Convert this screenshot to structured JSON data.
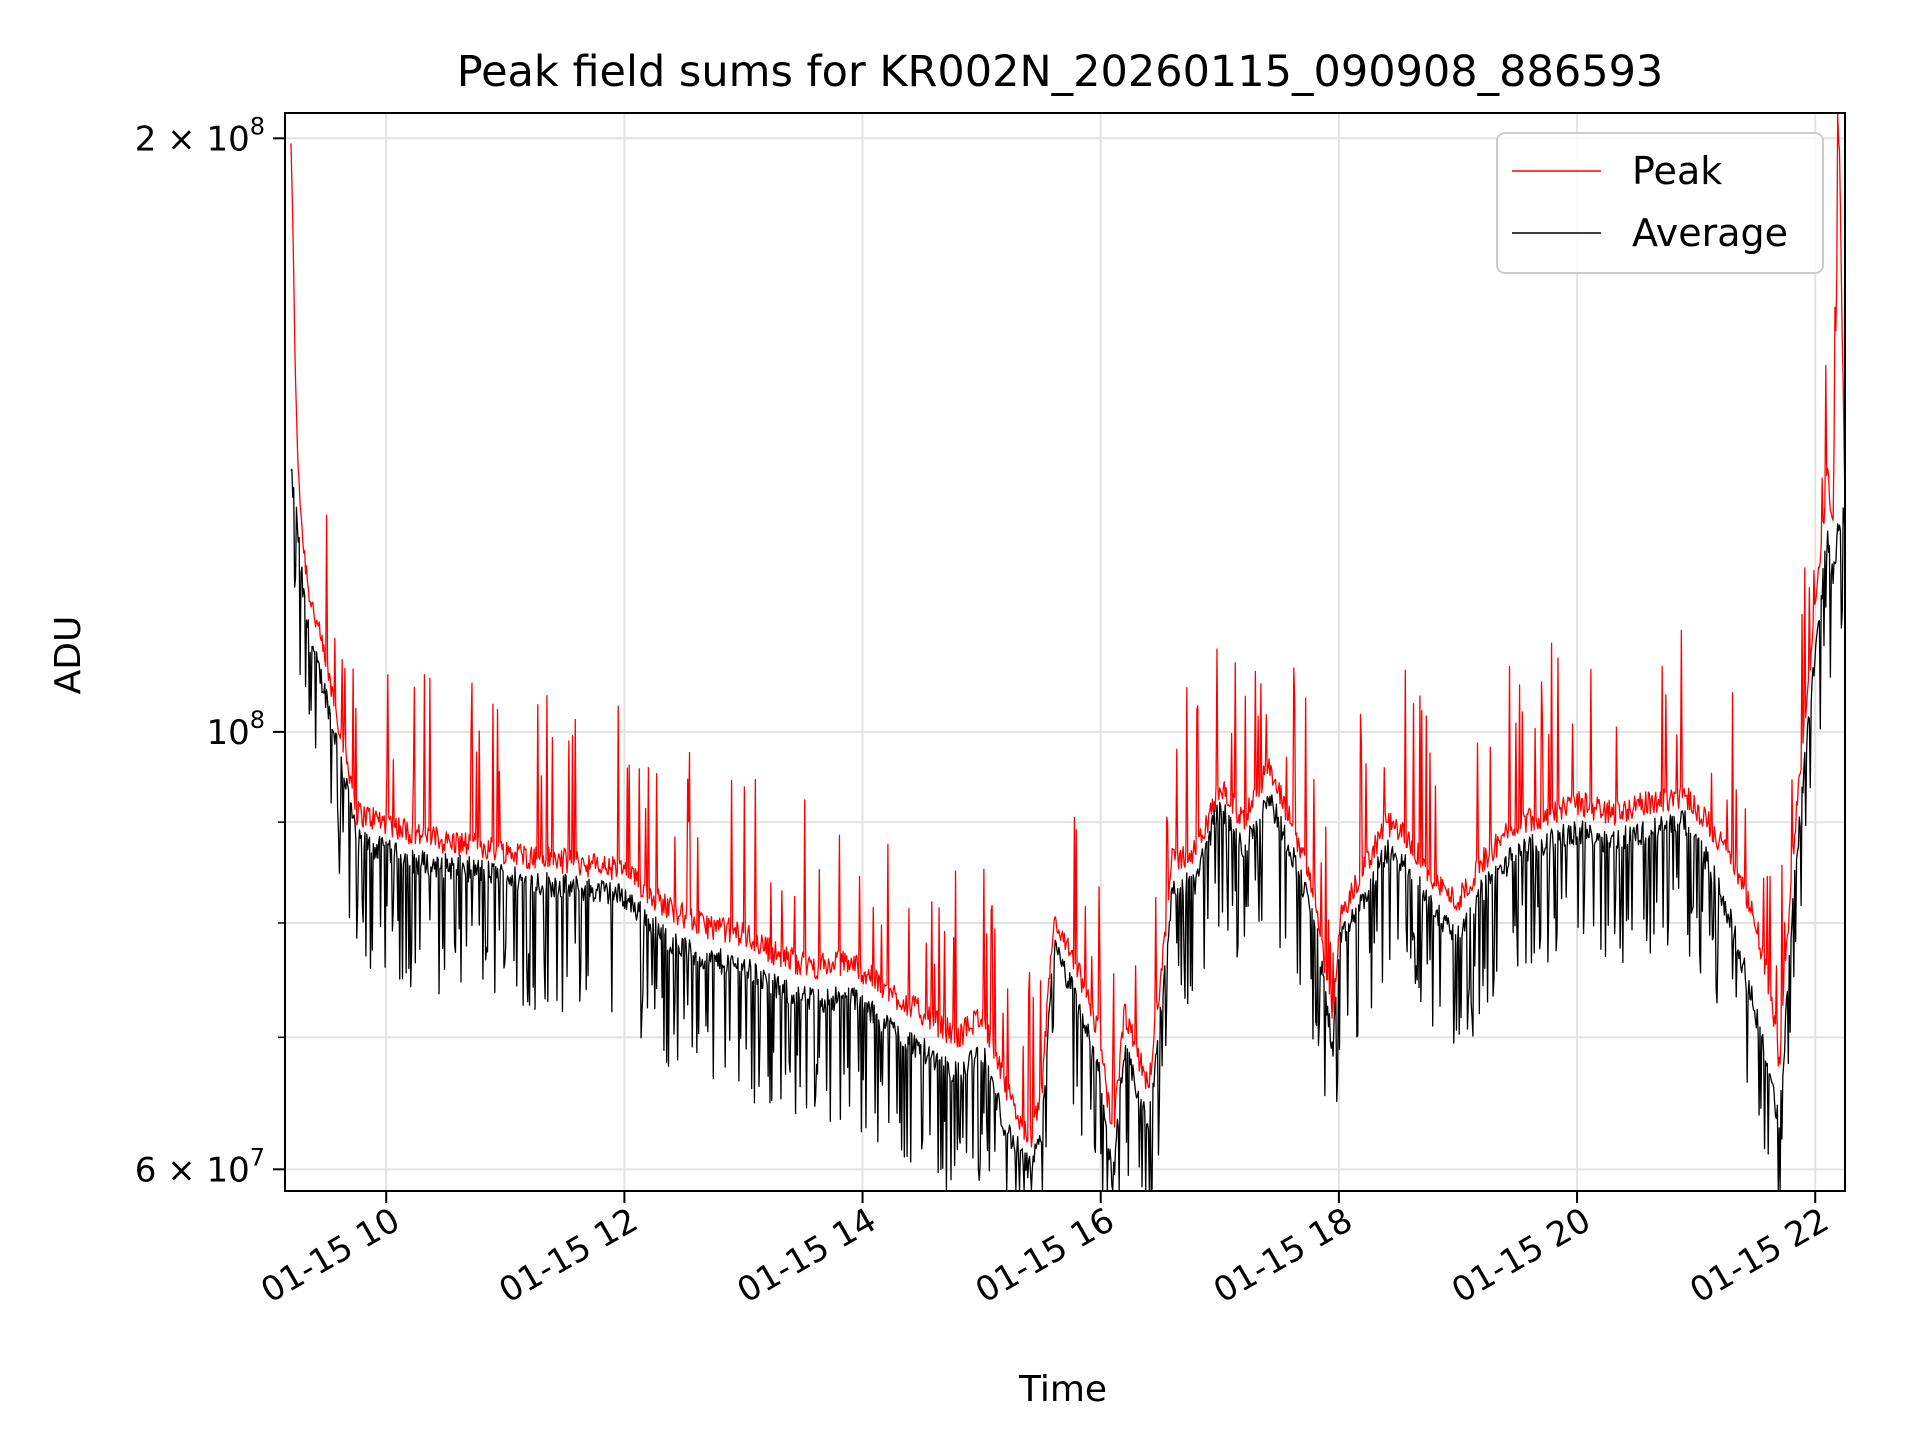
{
  "chart_data": {
    "type": "line",
    "title": "Peak field sums for KR002N_20260115_090908_886593",
    "xlabel": "Time",
    "ylabel": "ADU",
    "yscale": "log",
    "xlim_hours": [
      9.15,
      22.25
    ],
    "ylim": [
      58500000,
      206000000
    ],
    "grid": true,
    "legend_position": "upper right",
    "x_ticks": [
      {
        "value": 10,
        "label": "01-15 10"
      },
      {
        "value": 12,
        "label": "01-15 12"
      },
      {
        "value": 14,
        "label": "01-15 14"
      },
      {
        "value": 16,
        "label": "01-15 16"
      },
      {
        "value": 18,
        "label": "01-15 18"
      },
      {
        "value": 20,
        "label": "01-15 20"
      },
      {
        "value": 22,
        "label": "01-15 22"
      }
    ],
    "y_major_ticks": [
      {
        "value": 60000000,
        "mantissa": "6",
        "exp": "7"
      },
      {
        "value": 100000000,
        "mantissa": "",
        "exp": "8"
      },
      {
        "value": 200000000,
        "mantissa": "2",
        "exp": "8"
      }
    ],
    "y_minor_ticks": [
      70000000,
      80000000,
      90000000
    ],
    "series": [
      {
        "name": "Peak",
        "color": "#ff0000",
        "x": [
          9.2,
          9.25,
          9.3,
          9.35,
          9.5,
          9.7,
          9.75,
          10.0,
          10.2,
          10.5,
          10.8,
          11.0,
          11.2,
          11.5,
          11.8,
          12.0,
          12.3,
          12.6,
          13.0,
          13.3,
          13.6,
          13.9,
          14.2,
          14.5,
          14.8,
          15.0,
          15.2,
          15.4,
          15.5,
          15.6,
          15.8,
          16.0,
          16.1,
          16.2,
          16.4,
          16.5,
          16.6,
          16.8,
          16.9,
          17.0,
          17.2,
          17.4,
          17.6,
          17.8,
          17.95,
          18.0,
          18.2,
          18.4,
          18.6,
          18.8,
          19.0,
          19.2,
          19.5,
          19.8,
          20.0,
          20.3,
          20.6,
          20.9,
          21.1,
          21.3,
          21.5,
          21.6,
          21.7,
          21.8,
          21.9,
          22.0,
          22.1,
          22.15,
          22.2,
          22.25
        ],
        "y": [
          200000000,
          140000000,
          125000000,
          118000000,
          108000000,
          95000000,
          91000000,
          90000000,
          89000000,
          88000000,
          87500000,
          87000000,
          86500000,
          86000000,
          85500000,
          85000000,
          82000000,
          80000000,
          79000000,
          77000000,
          76000000,
          76500000,
          74000000,
          72000000,
          70000000,
          72000000,
          66000000,
          62000000,
          65000000,
          80000000,
          76000000,
          70000000,
          62000000,
          72000000,
          66000000,
          75000000,
          86000000,
          87000000,
          90000000,
          94000000,
          90000000,
          96000000,
          90000000,
          83000000,
          71000000,
          80000000,
          85000000,
          90000000,
          88000000,
          84000000,
          82000000,
          86000000,
          90000000,
          91000000,
          92000000,
          91000000,
          92000000,
          93000000,
          90000000,
          86000000,
          80000000,
          75000000,
          68000000,
          85000000,
          100000000,
          115000000,
          135000000,
          128000000,
          205000000,
          130000000
        ]
      },
      {
        "name": "Average",
        "color": "#000000",
        "x": [
          9.2,
          9.25,
          9.3,
          9.35,
          9.5,
          9.7,
          9.75,
          10.0,
          10.2,
          10.5,
          10.8,
          11.0,
          11.2,
          11.5,
          11.8,
          12.0,
          12.3,
          12.6,
          13.0,
          13.3,
          13.6,
          13.9,
          14.2,
          14.5,
          14.8,
          15.0,
          15.2,
          15.4,
          15.5,
          15.6,
          15.8,
          16.0,
          16.1,
          16.2,
          16.4,
          16.5,
          16.6,
          16.8,
          16.9,
          17.0,
          17.2,
          17.4,
          17.6,
          17.8,
          17.95,
          18.0,
          18.2,
          18.4,
          18.6,
          18.8,
          19.0,
          19.2,
          19.5,
          19.8,
          20.0,
          20.3,
          20.6,
          20.9,
          21.1,
          21.3,
          21.5,
          21.6,
          21.7,
          21.8,
          21.9,
          22.0,
          22.1,
          22.15,
          22.2,
          22.25
        ],
        "y": [
          135000000,
          128000000,
          118000000,
          112000000,
          104000000,
          92000000,
          88000000,
          87000000,
          86000000,
          85500000,
          85000000,
          84500000,
          84000000,
          83500000,
          83000000,
          82500000,
          79000000,
          77000000,
          76000000,
          74000000,
          73000000,
          73500000,
          71000000,
          69000000,
          67000000,
          69000000,
          63000000,
          60000000,
          62000000,
          78000000,
          73000000,
          67000000,
          59000000,
          69000000,
          63000000,
          72000000,
          83000000,
          84000000,
          88000000,
          92000000,
          87000000,
          93000000,
          87000000,
          80000000,
          69000000,
          78000000,
          82000000,
          87000000,
          85000000,
          81000000,
          79000000,
          83000000,
          87000000,
          88000000,
          89000000,
          88000000,
          89000000,
          90000000,
          86000000,
          80000000,
          72000000,
          68000000,
          63000000,
          80000000,
          95000000,
          110000000,
          125000000,
          120000000,
          128000000,
          128000000
        ]
      }
    ]
  }
}
